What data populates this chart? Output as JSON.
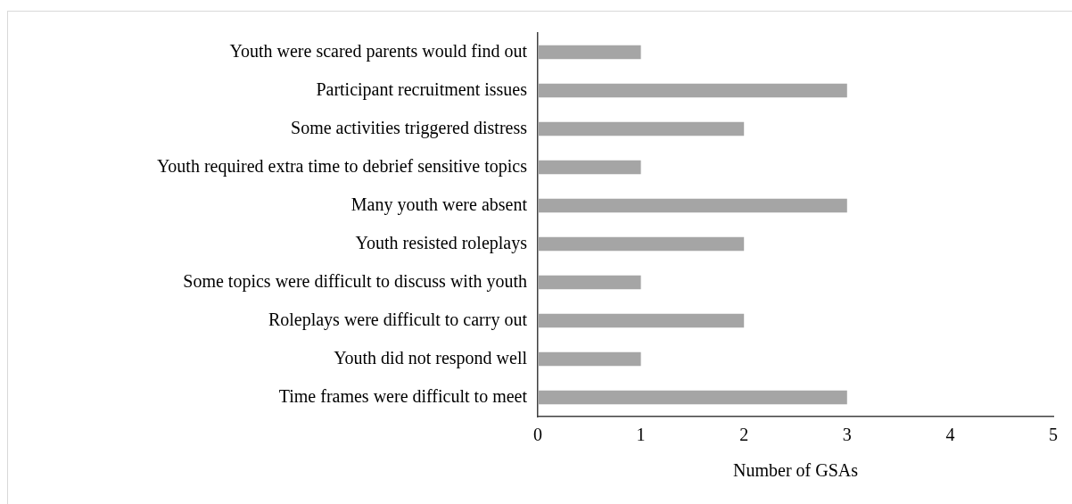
{
  "chart_data": {
    "type": "bar",
    "orientation": "horizontal",
    "xlabel": "Number of GSAs",
    "categories": [
      "Youth were scared parents would find out",
      "Participant recruitment issues",
      "Some activities triggered distress",
      "Youth required extra time to debrief sensitive topics",
      "Many youth were absent",
      "Youth resisted roleplays",
      "Some topics were difficult to discuss with youth",
      "Roleplays were difficult to carry out",
      "Youth did not respond well",
      "Time frames were difficult to meet"
    ],
    "values": [
      1,
      3,
      2,
      1,
      3,
      2,
      1,
      2,
      1,
      3
    ],
    "color": "#a5a5a5",
    "xlim": [
      0,
      5
    ],
    "xticks": [
      0,
      1,
      2,
      3,
      4,
      5
    ],
    "grid": false,
    "legend": false
  }
}
